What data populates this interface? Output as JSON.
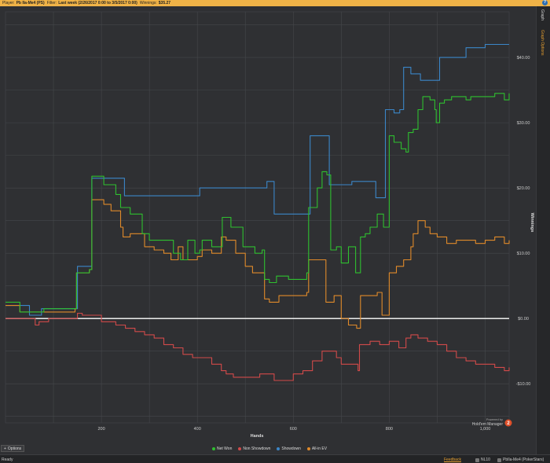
{
  "topbar": {
    "player_label": "Player:",
    "player_value": "Pb Ila-Me4 (PS)",
    "filter_label": "Filter:",
    "filter_value": "Last week (2/26/2017 0:00 to 3/5/2017 0:00)",
    "winnings_label": "Winnings:",
    "winnings_value": "$35.27",
    "help": "?"
  },
  "side_tabs": {
    "graph": "Graph",
    "graph_options": "Graph Options"
  },
  "options_button": "Options",
  "branding": {
    "line1": "Powered by",
    "line2": "Hold'em Manager",
    "badge": "2"
  },
  "status": {
    "ready": "Ready",
    "feedback": "Feedback",
    "site_label": "NL10",
    "player": "PbIla-Me4 (PokerStars)"
  },
  "colors": {
    "net_won": "#2fbf2f",
    "non_showdown": "#d24a4a",
    "showdown": "#3b86c8",
    "all_in_ev": "#e08a2a",
    "zero_line": "#ffffff",
    "grid": "#45474b",
    "accent": "#f0b347"
  },
  "chart_data": {
    "type": "line",
    "xlabel": "Hands",
    "ylabel": "Winnings",
    "xlim": [
      0,
      1050
    ],
    "ylim": [
      -16,
      47
    ],
    "x_ticks": [
      200,
      400,
      600,
      800,
      1000
    ],
    "x_tick_labels": [
      "200",
      "400",
      "600",
      "800",
      "1,000"
    ],
    "y_ticks": [
      -10,
      0,
      10,
      20,
      30,
      40
    ],
    "y_tick_labels": [
      "-$10.00",
      "$0.00",
      "$10.00",
      "$20.00",
      "$30.00",
      "$40.00"
    ],
    "grid": true,
    "legend_position": "bottom",
    "series": [
      {
        "name": "Net Won",
        "color_key": "net_won",
        "points": [
          [
            0,
            2.5
          ],
          [
            20,
            2.5
          ],
          [
            30,
            1
          ],
          [
            50,
            1
          ],
          [
            80,
            1.5
          ],
          [
            145,
            1.5
          ],
          [
            148,
            7
          ],
          [
            175,
            7.5
          ],
          [
            180,
            21.8
          ],
          [
            205,
            20.5
          ],
          [
            230,
            19
          ],
          [
            240,
            17
          ],
          [
            250,
            17
          ],
          [
            260,
            16
          ],
          [
            270,
            16
          ],
          [
            285,
            13
          ],
          [
            300,
            12
          ],
          [
            320,
            12
          ],
          [
            350,
            10
          ],
          [
            365,
            9
          ],
          [
            380,
            12
          ],
          [
            395,
            10
          ],
          [
            405,
            10.5
          ],
          [
            410,
            12
          ],
          [
            430,
            11
          ],
          [
            452,
            15.5
          ],
          [
            470,
            14
          ],
          [
            495,
            11
          ],
          [
            520,
            10
          ],
          [
            535,
            10.5
          ],
          [
            540,
            6
          ],
          [
            550,
            5.5
          ],
          [
            565,
            6.5
          ],
          [
            590,
            6
          ],
          [
            628,
            7
          ],
          [
            632,
            17
          ],
          [
            650,
            20
          ],
          [
            660,
            22.5
          ],
          [
            670,
            22
          ],
          [
            678,
            10.5
          ],
          [
            690,
            11
          ],
          [
            700,
            8.5
          ],
          [
            715,
            11
          ],
          [
            730,
            7
          ],
          [
            740,
            12.5
          ],
          [
            750,
            13
          ],
          [
            760,
            14
          ],
          [
            775,
            16
          ],
          [
            788,
            14
          ],
          [
            795,
            14
          ],
          [
            800,
            28
          ],
          [
            810,
            27
          ],
          [
            825,
            26
          ],
          [
            835,
            25.5
          ],
          [
            840,
            28.5
          ],
          [
            850,
            29
          ],
          [
            860,
            32
          ],
          [
            870,
            34
          ],
          [
            885,
            33.5
          ],
          [
            895,
            32
          ],
          [
            898,
            30
          ],
          [
            905,
            33
          ],
          [
            915,
            33.5
          ],
          [
            930,
            34
          ],
          [
            960,
            33.5
          ],
          [
            970,
            34
          ],
          [
            1000,
            34
          ],
          [
            1020,
            34.5
          ],
          [
            1040,
            33.5
          ],
          [
            1050,
            34.5
          ]
        ]
      },
      {
        "name": "Non Showdown",
        "color_key": "non_showdown",
        "points": [
          [
            0,
            0
          ],
          [
            60,
            0
          ],
          [
            62,
            -1
          ],
          [
            70,
            -0.5
          ],
          [
            90,
            0
          ],
          [
            150,
            0.8
          ],
          [
            160,
            0.5
          ],
          [
            180,
            0.5
          ],
          [
            200,
            -0.5
          ],
          [
            230,
            -1
          ],
          [
            250,
            -1.5
          ],
          [
            270,
            -2
          ],
          [
            290,
            -2.5
          ],
          [
            310,
            -3
          ],
          [
            330,
            -4
          ],
          [
            350,
            -4.5
          ],
          [
            370,
            -5.5
          ],
          [
            390,
            -6
          ],
          [
            410,
            -6
          ],
          [
            430,
            -7
          ],
          [
            450,
            -8
          ],
          [
            460,
            -8.5
          ],
          [
            475,
            -9
          ],
          [
            490,
            -9
          ],
          [
            510,
            -9
          ],
          [
            530,
            -8.5
          ],
          [
            560,
            -9.5
          ],
          [
            575,
            -9.5
          ],
          [
            600,
            -8.5
          ],
          [
            620,
            -8
          ],
          [
            640,
            -6.5
          ],
          [
            660,
            -5
          ],
          [
            670,
            -5
          ],
          [
            690,
            -6
          ],
          [
            700,
            -7
          ],
          [
            720,
            -7
          ],
          [
            735,
            -8
          ],
          [
            738,
            -4
          ],
          [
            760,
            -3.5
          ],
          [
            780,
            -4
          ],
          [
            800,
            -3.5
          ],
          [
            820,
            -4.5
          ],
          [
            835,
            -3
          ],
          [
            845,
            -2.5
          ],
          [
            860,
            -3
          ],
          [
            880,
            -3.5
          ],
          [
            900,
            -4
          ],
          [
            920,
            -5
          ],
          [
            940,
            -6
          ],
          [
            960,
            -6.5
          ],
          [
            980,
            -7
          ],
          [
            1000,
            -7
          ],
          [
            1020,
            -7.5
          ],
          [
            1040,
            -8
          ],
          [
            1050,
            -7.5
          ]
        ]
      },
      {
        "name": "Showdown",
        "color_key": "showdown",
        "points": [
          [
            0,
            2
          ],
          [
            48,
            2
          ],
          [
            50,
            0.5
          ],
          [
            60,
            0.5
          ],
          [
            75,
            1.5
          ],
          [
            145,
            1.5
          ],
          [
            150,
            8
          ],
          [
            175,
            8
          ],
          [
            180,
            21.5
          ],
          [
            245,
            21.5
          ],
          [
            248,
            18.8
          ],
          [
            400,
            18.8
          ],
          [
            405,
            20
          ],
          [
            540,
            20
          ],
          [
            545,
            21
          ],
          [
            555,
            21
          ],
          [
            560,
            16
          ],
          [
            630,
            16
          ],
          [
            635,
            28
          ],
          [
            670,
            28
          ],
          [
            675,
            20.5
          ],
          [
            720,
            20.5
          ],
          [
            722,
            21
          ],
          [
            770,
            21
          ],
          [
            772,
            18.5
          ],
          [
            790,
            18.5
          ],
          [
            792,
            32
          ],
          [
            810,
            31.5
          ],
          [
            822,
            32
          ],
          [
            830,
            38.5
          ],
          [
            845,
            37.5
          ],
          [
            860,
            37.5
          ],
          [
            865,
            36.5
          ],
          [
            900,
            36.5
          ],
          [
            905,
            40
          ],
          [
            955,
            40
          ],
          [
            960,
            41.5
          ],
          [
            995,
            41.5
          ],
          [
            1000,
            42
          ],
          [
            1050,
            42
          ]
        ]
      },
      {
        "name": "All-in EV",
        "color_key": "all_in_ev",
        "points": [
          [
            0,
            2
          ],
          [
            20,
            2
          ],
          [
            30,
            1
          ],
          [
            60,
            1
          ],
          [
            80,
            1
          ],
          [
            145,
            1.5
          ],
          [
            148,
            7
          ],
          [
            175,
            7.5
          ],
          [
            180,
            18.2
          ],
          [
            205,
            17.5
          ],
          [
            220,
            16.5
          ],
          [
            240,
            14
          ],
          [
            245,
            12.5
          ],
          [
            260,
            13
          ],
          [
            280,
            13
          ],
          [
            290,
            11
          ],
          [
            310,
            10.5
          ],
          [
            330,
            10
          ],
          [
            345,
            9
          ],
          [
            360,
            11
          ],
          [
            370,
            9
          ],
          [
            390,
            9
          ],
          [
            400,
            9.5
          ],
          [
            410,
            10.5
          ],
          [
            430,
            10
          ],
          [
            450,
            12.5
          ],
          [
            460,
            12
          ],
          [
            480,
            10
          ],
          [
            500,
            8
          ],
          [
            515,
            7
          ],
          [
            535,
            7
          ],
          [
            540,
            3
          ],
          [
            550,
            2.5
          ],
          [
            570,
            3.5
          ],
          [
            590,
            3.5
          ],
          [
            628,
            4
          ],
          [
            632,
            9
          ],
          [
            655,
            9
          ],
          [
            665,
            9
          ],
          [
            668,
            2.5
          ],
          [
            685,
            3.5
          ],
          [
            700,
            0
          ],
          [
            715,
            -1
          ],
          [
            732,
            -1.5
          ],
          [
            740,
            3.5
          ],
          [
            760,
            3.5
          ],
          [
            775,
            4
          ],
          [
            785,
            0.5
          ],
          [
            795,
            0.5
          ],
          [
            800,
            7
          ],
          [
            815,
            8
          ],
          [
            830,
            9
          ],
          [
            845,
            11
          ],
          [
            850,
            13
          ],
          [
            860,
            15
          ],
          [
            875,
            14
          ],
          [
            885,
            13
          ],
          [
            900,
            12.5
          ],
          [
            920,
            11.5
          ],
          [
            940,
            12
          ],
          [
            960,
            12
          ],
          [
            980,
            11.5
          ],
          [
            1000,
            12
          ],
          [
            1020,
            12.5
          ],
          [
            1040,
            11.5
          ],
          [
            1050,
            12
          ]
        ]
      }
    ]
  }
}
